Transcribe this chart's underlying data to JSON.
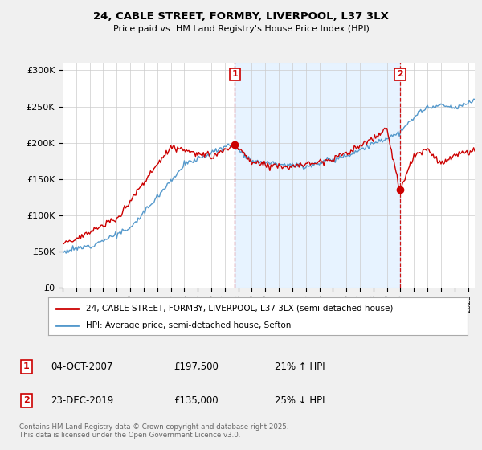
{
  "title_line1": "24, CABLE STREET, FORMBY, LIVERPOOL, L37 3LX",
  "title_line2": "Price paid vs. HM Land Registry's House Price Index (HPI)",
  "ylabel_ticks": [
    "£0",
    "£50K",
    "£100K",
    "£150K",
    "£200K",
    "£250K",
    "£300K"
  ],
  "ytick_values": [
    0,
    50000,
    100000,
    150000,
    200000,
    250000,
    300000
  ],
  "ylim": [
    0,
    310000
  ],
  "xlim_start": 1995.0,
  "xlim_end": 2025.5,
  "line1_color": "#cc0000",
  "line2_color": "#5599cc",
  "shade_color": "#ddeeff",
  "vline_color": "#cc0000",
  "marker1_date": 2007.75,
  "marker2_date": 2019.97,
  "marker1_price": 197500,
  "marker2_price": 135000,
  "legend_line1": "24, CABLE STREET, FORMBY, LIVERPOOL, L37 3LX (semi-detached house)",
  "legend_line2": "HPI: Average price, semi-detached house, Sefton",
  "footer": "Contains HM Land Registry data © Crown copyright and database right 2025.\nThis data is licensed under the Open Government Licence v3.0.",
  "bg_color": "#f0f0f0",
  "plot_bg_color": "#ffffff",
  "grid_color": "#cccccc"
}
